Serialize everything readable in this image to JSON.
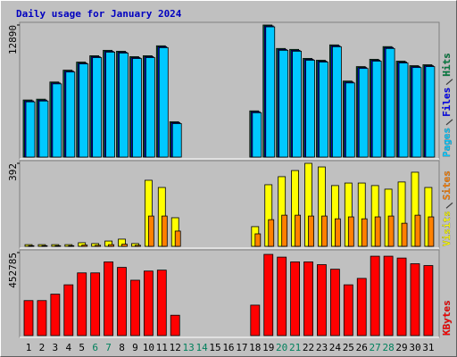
{
  "chart_data": [
    {
      "type": "bar",
      "title": "Daily usage for January 2024",
      "ylim": [
        0,
        12890
      ],
      "yticks": [
        12890
      ],
      "series": [
        {
          "name": "Hits",
          "color": "#008040",
          "values": [
            5570,
            5650,
            7330,
            8480,
            9270,
            9890,
            10420,
            10330,
            9800,
            9890,
            10860,
            3450,
            0,
            0,
            0,
            0,
            0,
            4510,
            12890,
            10600,
            10510,
            9630,
            9450,
            10950,
            7420,
            8830,
            9540,
            10780,
            9360,
            8920,
            9010
          ]
        },
        {
          "name": "Files",
          "color": "#0000ff",
          "values": [
            5480,
            5560,
            7240,
            8390,
            9180,
            9800,
            10330,
            10240,
            9710,
            9800,
            10770,
            3360,
            0,
            0,
            0,
            0,
            0,
            4420,
            12800,
            10510,
            10420,
            9540,
            9360,
            10860,
            7330,
            8740,
            9450,
            10690,
            9270,
            8830,
            8920
          ]
        },
        {
          "name": "Pages",
          "color": "#00c8ff",
          "values": [
            5390,
            5470,
            7150,
            8300,
            9090,
            9710,
            10240,
            10150,
            9620,
            9710,
            10680,
            3270,
            0,
            0,
            0,
            0,
            0,
            4330,
            12710,
            10420,
            10330,
            9450,
            9270,
            10770,
            7240,
            8650,
            9360,
            10600,
            9180,
            8740,
            8830
          ]
        }
      ]
    },
    {
      "type": "bar",
      "ylim": [
        0,
        392
      ],
      "yticks": [
        392
      ],
      "series": [
        {
          "name": "Sites",
          "color": "#ff8000",
          "values": [
            3,
            3,
            3,
            3,
            6,
            5,
            8,
            10,
            5,
            143,
            143,
            72,
            0,
            0,
            0,
            0,
            0,
            59,
            126,
            147,
            147,
            143,
            143,
            130,
            139,
            130,
            139,
            143,
            109,
            147,
            139
          ]
        },
        {
          "name": "Visits",
          "color": "#ffff00",
          "values": [
            8,
            8,
            8,
            8,
            17,
            13,
            25,
            34,
            13,
            312,
            278,
            135,
            0,
            0,
            0,
            0,
            0,
            93,
            291,
            329,
            358,
            392,
            375,
            287,
            299,
            299,
            287,
            270,
            304,
            350,
            278
          ]
        }
      ]
    },
    {
      "type": "bar",
      "ylim": [
        0,
        452785
      ],
      "yticks": [
        452785
      ],
      "categories": [
        "1",
        "2",
        "3",
        "4",
        "5",
        "6",
        "7",
        "8",
        "9",
        "10",
        "11",
        "12",
        "13",
        "14",
        "15",
        "16",
        "17",
        "18",
        "19",
        "20",
        "21",
        "22",
        "23",
        "24",
        "25",
        "26",
        "27",
        "28",
        "29",
        "30",
        "31"
      ],
      "label_colors": [
        "#000000",
        "#000000",
        "#000000",
        "#000000",
        "#000000",
        "#00805c",
        "#00805c",
        "#000000",
        "#000000",
        "#000000",
        "#000000",
        "#000000",
        "#00805c",
        "#00805c",
        "#000000",
        "#000000",
        "#000000",
        "#000000",
        "#000000",
        "#00805c",
        "#00805c",
        "#000000",
        "#000000",
        "#000000",
        "#000000",
        "#000000",
        "#00805c",
        "#00805c",
        "#000000",
        "#000000",
        "#000000"
      ],
      "series": [
        {
          "name": "KBytes",
          "color": "#ff0000",
          "values": [
            191000,
            191000,
            226000,
            277000,
            342000,
            342000,
            402000,
            372000,
            302000,
            352000,
            357000,
            111000,
            0,
            0,
            0,
            0,
            0,
            166000,
            443000,
            428000,
            402000,
            402000,
            387000,
            362000,
            277000,
            312000,
            433000,
            433000,
            423000,
            392000,
            382000
          ]
        }
      ]
    }
  ]
}
